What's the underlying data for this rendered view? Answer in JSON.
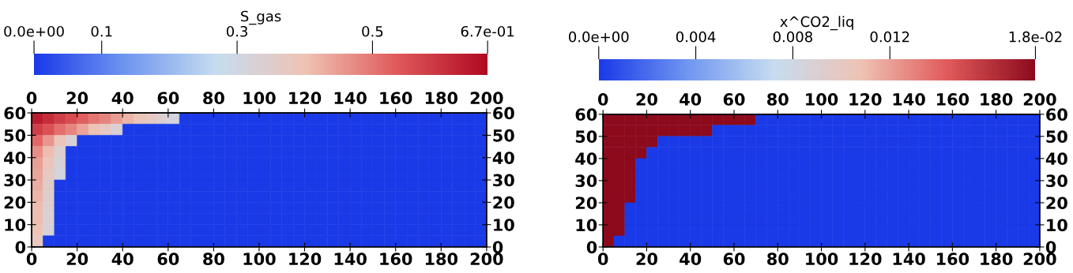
{
  "chart_data": [
    {
      "type": "heatmap",
      "clabel": "S_gas",
      "clim": [
        0,
        0.67
      ],
      "cticks": [
        {
          "value": 0,
          "label": "0.0e+00"
        },
        0.1,
        0.3,
        0.5,
        {
          "value": 0.67,
          "label": "6.7e-01"
        }
      ],
      "colors": [
        "#1a3ae8",
        "#6f95f0",
        "#c6dcf0",
        "#eec3b4",
        "#e05a5a",
        "#b00a22"
      ],
      "x": [
        2.5,
        7.5,
        12.5,
        17.5,
        22.5,
        27.5,
        32.5,
        37.5,
        42.5,
        47.5,
        52.5,
        57.5,
        62.5,
        67.5,
        72.5,
        77.5,
        82.5,
        87.5,
        92.5,
        97.5,
        102.5,
        107.5,
        112.5,
        117.5,
        122.5,
        127.5,
        132.5,
        137.5,
        142.5,
        147.5,
        152.5,
        157.5,
        162.5,
        167.5,
        172.5,
        177.5,
        182.5,
        187.5,
        192.5,
        197.5
      ],
      "y": [
        57.5,
        52.5,
        47.5,
        42.5,
        37.5,
        32.5,
        27.5,
        22.5,
        17.5,
        12.5,
        7.5,
        2.5
      ],
      "xlim": [
        0,
        200
      ],
      "xticks": [
        0,
        20,
        40,
        60,
        80,
        100,
        120,
        140,
        160,
        180,
        200
      ],
      "x2lim": [
        0,
        200
      ],
      "x2ticks": [
        0,
        20,
        40,
        60,
        80,
        100,
        120,
        140,
        160,
        180,
        200
      ],
      "ylim": [
        0,
        60
      ],
      "yticks": [
        0,
        10,
        20,
        30,
        40,
        50,
        60
      ],
      "y2lim": [
        0,
        60
      ],
      "y2ticks": [
        0,
        10,
        20,
        30,
        40,
        50,
        60
      ],
      "cells": [
        [
          0.64,
          0.61,
          0.58,
          0.56,
          0.53,
          0.5,
          0.48,
          0.45,
          0.42,
          0.39,
          0.37,
          0.34,
          0.31,
          0,
          0,
          0,
          0,
          0,
          0,
          0,
          0,
          0,
          0,
          0,
          0,
          0,
          0,
          0,
          0,
          0,
          0,
          0,
          0,
          0,
          0,
          0,
          0,
          0,
          0,
          0
        ],
        [
          0.58,
          0.55,
          0.51,
          0.48,
          0.44,
          0.4,
          0.37,
          0.33,
          0,
          0,
          0,
          0,
          0,
          0,
          0,
          0,
          0,
          0,
          0,
          0,
          0,
          0,
          0,
          0,
          0,
          0,
          0,
          0,
          0,
          0,
          0,
          0,
          0,
          0,
          0,
          0,
          0,
          0,
          0,
          0
        ],
        [
          0.52,
          0.46,
          0.39,
          0.33,
          0,
          0,
          0,
          0,
          0,
          0,
          0,
          0,
          0,
          0,
          0,
          0,
          0,
          0,
          0,
          0,
          0,
          0,
          0,
          0,
          0,
          0,
          0,
          0,
          0,
          0,
          0,
          0,
          0,
          0,
          0,
          0,
          0,
          0,
          0,
          0
        ],
        [
          0.47,
          0.41,
          0.34,
          0,
          0,
          0,
          0,
          0,
          0,
          0,
          0,
          0,
          0,
          0,
          0,
          0,
          0,
          0,
          0,
          0,
          0,
          0,
          0,
          0,
          0,
          0,
          0,
          0,
          0,
          0,
          0,
          0,
          0,
          0,
          0,
          0,
          0,
          0,
          0,
          0
        ],
        [
          0.45,
          0.39,
          0.32,
          0,
          0,
          0,
          0,
          0,
          0,
          0,
          0,
          0,
          0,
          0,
          0,
          0,
          0,
          0,
          0,
          0,
          0,
          0,
          0,
          0,
          0,
          0,
          0,
          0,
          0,
          0,
          0,
          0,
          0,
          0,
          0,
          0,
          0,
          0,
          0,
          0
        ],
        [
          0.44,
          0.37,
          0.31,
          0,
          0,
          0,
          0,
          0,
          0,
          0,
          0,
          0,
          0,
          0,
          0,
          0,
          0,
          0,
          0,
          0,
          0,
          0,
          0,
          0,
          0,
          0,
          0,
          0,
          0,
          0,
          0,
          0,
          0,
          0,
          0,
          0,
          0,
          0,
          0,
          0
        ],
        [
          0.43,
          0.36,
          0,
          0,
          0,
          0,
          0,
          0,
          0,
          0,
          0,
          0,
          0,
          0,
          0,
          0,
          0,
          0,
          0,
          0,
          0,
          0,
          0,
          0,
          0,
          0,
          0,
          0,
          0,
          0,
          0,
          0,
          0,
          0,
          0,
          0,
          0,
          0,
          0,
          0
        ],
        [
          0.42,
          0.35,
          0,
          0,
          0,
          0,
          0,
          0,
          0,
          0,
          0,
          0,
          0,
          0,
          0,
          0,
          0,
          0,
          0,
          0,
          0,
          0,
          0,
          0,
          0,
          0,
          0,
          0,
          0,
          0,
          0,
          0,
          0,
          0,
          0,
          0,
          0,
          0,
          0,
          0
        ],
        [
          0.41,
          0.34,
          0,
          0,
          0,
          0,
          0,
          0,
          0,
          0,
          0,
          0,
          0,
          0,
          0,
          0,
          0,
          0,
          0,
          0,
          0,
          0,
          0,
          0,
          0,
          0,
          0,
          0,
          0,
          0,
          0,
          0,
          0,
          0,
          0,
          0,
          0,
          0,
          0,
          0
        ],
        [
          0.41,
          0.33,
          0,
          0,
          0,
          0,
          0,
          0,
          0,
          0,
          0,
          0,
          0,
          0,
          0,
          0,
          0,
          0,
          0,
          0,
          0,
          0,
          0,
          0,
          0,
          0,
          0,
          0,
          0,
          0,
          0,
          0,
          0,
          0,
          0,
          0,
          0,
          0,
          0,
          0
        ],
        [
          0.4,
          0.32,
          0,
          0,
          0,
          0,
          0,
          0,
          0,
          0,
          0,
          0,
          0,
          0,
          0,
          0,
          0,
          0,
          0,
          0,
          0,
          0,
          0,
          0,
          0,
          0,
          0,
          0,
          0,
          0,
          0,
          0,
          0,
          0,
          0,
          0,
          0,
          0,
          0,
          0
        ],
        [
          0.38,
          0,
          0,
          0,
          0,
          0,
          0,
          0,
          0,
          0,
          0,
          0,
          0,
          0,
          0,
          0,
          0,
          0,
          0,
          0,
          0,
          0,
          0,
          0,
          0,
          0,
          0,
          0,
          0,
          0,
          0,
          0,
          0,
          0,
          0,
          0,
          0,
          0,
          0,
          0
        ]
      ]
    },
    {
      "type": "heatmap",
      "clabel": "x^CO2_liq",
      "clim": [
        0,
        0.018
      ],
      "cticks": [
        {
          "value": 0,
          "label": "0.0e+00"
        },
        0.004,
        0.008,
        0.012,
        {
          "value": 0.018,
          "label": "1.8e-02"
        }
      ],
      "colors": [
        "#1a3ae8",
        "#6f95f0",
        "#c6dcf0",
        "#eec3b4",
        "#e05a5a",
        "#8c0a1c"
      ],
      "x": [
        2.5,
        7.5,
        12.5,
        17.5,
        22.5,
        27.5,
        32.5,
        37.5,
        42.5,
        47.5,
        52.5,
        57.5,
        62.5,
        67.5,
        72.5,
        77.5,
        82.5,
        87.5,
        92.5,
        97.5,
        102.5,
        107.5,
        112.5,
        117.5,
        122.5,
        127.5,
        132.5,
        137.5,
        142.5,
        147.5,
        152.5,
        157.5,
        162.5,
        167.5,
        172.5,
        177.5,
        182.5,
        187.5,
        192.5,
        197.5
      ],
      "y": [
        57.5,
        52.5,
        47.5,
        42.5,
        37.5,
        32.5,
        27.5,
        22.5,
        17.5,
        12.5,
        7.5,
        2.5
      ],
      "xlim": [
        0,
        200
      ],
      "xticks": [
        0,
        20,
        40,
        60,
        80,
        100,
        120,
        140,
        160,
        180,
        200
      ],
      "x2lim": [
        0,
        200
      ],
      "x2ticks": [
        0,
        20,
        40,
        60,
        80,
        100,
        120,
        140,
        160,
        180,
        200
      ],
      "ylim": [
        0,
        60
      ],
      "yticks": [
        0,
        10,
        20,
        30,
        40,
        50,
        60
      ],
      "y2lim": [
        0,
        60
      ],
      "y2ticks": [
        0,
        10,
        20,
        30,
        40,
        50,
        60
      ],
      "cells": [
        [
          0.018,
          0.018,
          0.018,
          0.018,
          0.018,
          0.018,
          0.018,
          0.018,
          0.018,
          0.018,
          0.018,
          0.018,
          0.018,
          0.018,
          0,
          0,
          0,
          0,
          0,
          0,
          0,
          0,
          0,
          0,
          0,
          0,
          0,
          0,
          0,
          0,
          0,
          0,
          0,
          0,
          0,
          0,
          0,
          0,
          0,
          0
        ],
        [
          0.018,
          0.018,
          0.018,
          0.018,
          0.018,
          0.018,
          0.018,
          0.018,
          0.018,
          0.018,
          0,
          0,
          0,
          0,
          0,
          0,
          0,
          0,
          0,
          0,
          0,
          0,
          0,
          0,
          0,
          0,
          0,
          0,
          0,
          0,
          0,
          0,
          0,
          0,
          0,
          0,
          0,
          0,
          0,
          0
        ],
        [
          0.018,
          0.018,
          0.018,
          0.018,
          0.018,
          0,
          0,
          0,
          0,
          0,
          0,
          0,
          0,
          0,
          0,
          0,
          0,
          0,
          0,
          0,
          0,
          0,
          0,
          0,
          0,
          0,
          0,
          0,
          0,
          0,
          0,
          0,
          0,
          0,
          0,
          0,
          0,
          0,
          0,
          0
        ],
        [
          0.018,
          0.018,
          0.018,
          0.018,
          0,
          0,
          0,
          0,
          0,
          0,
          0,
          0,
          0,
          0,
          0,
          0,
          0,
          0,
          0,
          0,
          0,
          0,
          0,
          0,
          0,
          0,
          0,
          0,
          0,
          0,
          0,
          0,
          0,
          0,
          0,
          0,
          0,
          0,
          0,
          0
        ],
        [
          0.018,
          0.018,
          0.018,
          0,
          0,
          0,
          0,
          0,
          0,
          0,
          0,
          0,
          0,
          0,
          0,
          0,
          0,
          0,
          0,
          0,
          0,
          0,
          0,
          0,
          0,
          0,
          0,
          0,
          0,
          0,
          0,
          0,
          0,
          0,
          0,
          0,
          0,
          0,
          0,
          0
        ],
        [
          0.018,
          0.018,
          0.018,
          0,
          0,
          0,
          0,
          0,
          0,
          0,
          0,
          0,
          0,
          0,
          0,
          0,
          0,
          0,
          0,
          0,
          0,
          0,
          0,
          0,
          0,
          0,
          0,
          0,
          0,
          0,
          0,
          0,
          0,
          0,
          0,
          0,
          0,
          0,
          0,
          0
        ],
        [
          0.018,
          0.018,
          0.018,
          0,
          0,
          0,
          0,
          0,
          0,
          0,
          0,
          0,
          0,
          0,
          0,
          0,
          0,
          0,
          0,
          0,
          0,
          0,
          0,
          0,
          0,
          0,
          0,
          0,
          0,
          0,
          0,
          0,
          0,
          0,
          0,
          0,
          0,
          0,
          0,
          0
        ],
        [
          0.018,
          0.018,
          0.018,
          0,
          0,
          0,
          0,
          0,
          0,
          0,
          0,
          0,
          0,
          0,
          0,
          0,
          0,
          0,
          0,
          0,
          0,
          0,
          0,
          0,
          0,
          0,
          0,
          0,
          0,
          0,
          0,
          0,
          0,
          0,
          0,
          0,
          0,
          0,
          0,
          0
        ],
        [
          0.018,
          0.018,
          0,
          0,
          0,
          0,
          0,
          0,
          0,
          0,
          0,
          0,
          0,
          0,
          0,
          0,
          0,
          0,
          0,
          0,
          0,
          0,
          0,
          0,
          0,
          0,
          0,
          0,
          0,
          0,
          0,
          0,
          0,
          0,
          0,
          0,
          0,
          0,
          0,
          0
        ],
        [
          0.018,
          0.018,
          0,
          0,
          0,
          0,
          0,
          0,
          0,
          0,
          0,
          0,
          0,
          0,
          0,
          0,
          0,
          0,
          0,
          0,
          0,
          0,
          0,
          0,
          0,
          0,
          0,
          0,
          0,
          0,
          0,
          0,
          0,
          0,
          0,
          0,
          0,
          0,
          0,
          0
        ],
        [
          0.018,
          0.018,
          0,
          0,
          0,
          0,
          0,
          0,
          0,
          0,
          0,
          0,
          0,
          0,
          0,
          0,
          0,
          0,
          0,
          0,
          0,
          0,
          0,
          0,
          0,
          0,
          0,
          0,
          0,
          0,
          0,
          0,
          0,
          0,
          0,
          0,
          0,
          0,
          0,
          0
        ],
        [
          0.018,
          0,
          0,
          0,
          0,
          0,
          0,
          0,
          0,
          0,
          0,
          0,
          0,
          0,
          0,
          0,
          0,
          0,
          0,
          0,
          0,
          0,
          0,
          0,
          0,
          0,
          0,
          0,
          0,
          0,
          0,
          0,
          0,
          0,
          0,
          0,
          0,
          0,
          0,
          0
        ]
      ]
    }
  ]
}
